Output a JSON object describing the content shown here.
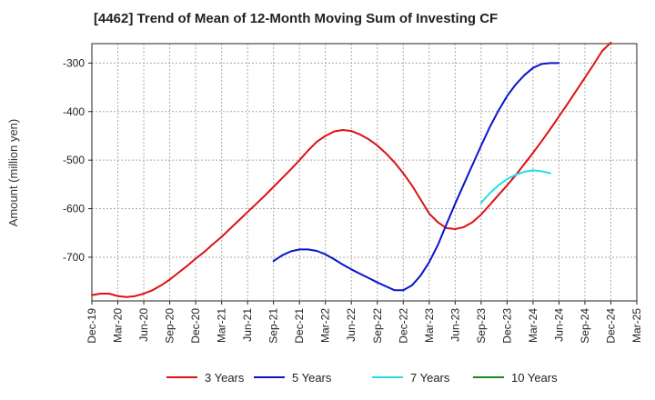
{
  "chart_data": {
    "type": "line",
    "title": "[4462]  Trend of Mean of 12-Month Moving Sum of Investing CF",
    "xlabel": "",
    "ylabel": "Amount (million yen)",
    "ylim": [
      -790,
      -260
    ],
    "y_ticks": [
      -300,
      -400,
      -500,
      -600,
      -700
    ],
    "x_ticks": [
      "Dec-19",
      "Mar-20",
      "Jun-20",
      "Sep-20",
      "Dec-20",
      "Mar-21",
      "Jun-21",
      "Sep-21",
      "Dec-21",
      "Mar-22",
      "Jun-22",
      "Sep-22",
      "Dec-22",
      "Mar-23",
      "Jun-23",
      "Sep-23",
      "Dec-23",
      "Mar-24",
      "Jun-24",
      "Sep-24",
      "Dec-24",
      "Mar-25"
    ],
    "grid": true,
    "legend_position": "bottom",
    "series": [
      {
        "name": "3 Years",
        "color": "#dd1111",
        "start_month_index": 0,
        "values": [
          -778,
          -775,
          -775,
          -780,
          -782,
          -780,
          -775,
          -768,
          -758,
          -746,
          -732,
          -718,
          -703,
          -689,
          -673,
          -658,
          -641,
          -624,
          -607,
          -590,
          -573,
          -555,
          -537,
          -519,
          -500,
          -480,
          -462,
          -450,
          -441,
          -438,
          -440,
          -447,
          -457,
          -470,
          -486,
          -505,
          -527,
          -552,
          -581,
          -610,
          -628,
          -640,
          -642,
          -638,
          -628,
          -612,
          -592,
          -572,
          -552,
          -531,
          -508,
          -485,
          -461,
          -436,
          -410,
          -384,
          -357,
          -330,
          -303,
          -275,
          -258
        ]
      },
      {
        "name": "5 Years",
        "color": "#0a14cc",
        "start_month_index": 21,
        "values": [
          -708,
          -696,
          -688,
          -684,
          -684,
          -687,
          -694,
          -704,
          -715,
          -725,
          -734,
          -743,
          -752,
          -760,
          -768,
          -768,
          -758,
          -738,
          -710,
          -675,
          -632,
          -590,
          -550,
          -510,
          -470,
          -432,
          -398,
          -368,
          -344,
          -325,
          -310,
          -302,
          -300,
          -300
        ]
      },
      {
        "name": "7 Years",
        "color": "#22e0e8",
        "start_month_index": 45,
        "values": [
          -588,
          -568,
          -552,
          -539,
          -530,
          -524,
          -521,
          -523,
          -527
        ]
      },
      {
        "name": "10 Years",
        "color": "#1a8a1a",
        "start_month_index": 0,
        "values": []
      }
    ]
  }
}
